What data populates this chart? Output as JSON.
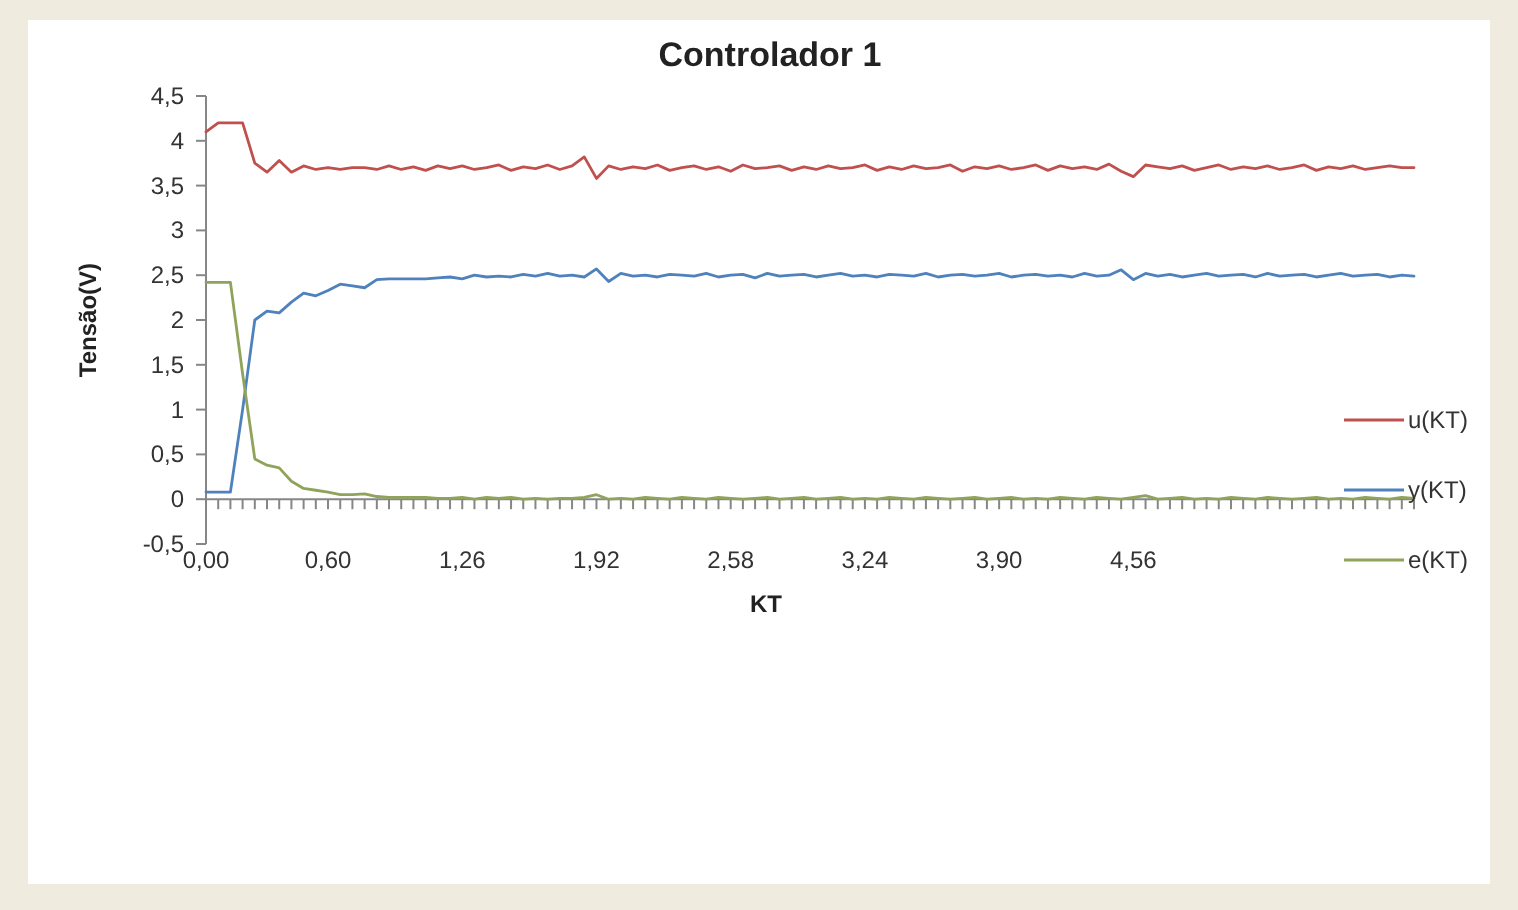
{
  "chart_data": {
    "type": "line",
    "title": "Controlador 1",
    "xlabel": "KT",
    "ylabel": "Tensão(V)",
    "categories": [
      "0,00",
      null,
      null,
      null,
      null,
      null,
      null,
      null,
      null,
      null,
      "0,60",
      null,
      null,
      null,
      null,
      null,
      null,
      null,
      null,
      null,
      null,
      "1,26",
      null,
      null,
      null,
      null,
      null,
      null,
      null,
      null,
      null,
      null,
      "1,92",
      null,
      null,
      null,
      null,
      null,
      null,
      null,
      null,
      null,
      null,
      "2,58",
      null,
      null,
      null,
      null,
      null,
      null,
      null,
      null,
      null,
      null,
      "3,24",
      null,
      null,
      null,
      null,
      null,
      null,
      null,
      null,
      null,
      null,
      "3,90",
      null,
      null,
      null,
      null,
      null,
      null,
      null,
      null,
      null,
      null,
      "4,56",
      null,
      null,
      null,
      null,
      null,
      null,
      null,
      null,
      null,
      null,
      null,
      null,
      null,
      null,
      null,
      null,
      null,
      null,
      null,
      null,
      null,
      null,
      null
    ],
    "ylim": [
      -0.5,
      4.5
    ],
    "yticks": [
      {
        "value": -0.5,
        "label": "-0,5"
      },
      0,
      {
        "value": 0.5,
        "label": "0,5"
      },
      1,
      {
        "value": 1.5,
        "label": "1,5"
      },
      2,
      {
        "value": 2.5,
        "label": "2,5"
      },
      3,
      {
        "value": 3.5,
        "label": "3,5"
      },
      4,
      {
        "value": 4.5,
        "label": "4,5"
      }
    ],
    "grid": false,
    "legend": "right",
    "marker": "none",
    "line_style": "solid",
    "series": [
      {
        "name": "u(KT)",
        "color": "#c0504d",
        "values": [
          4.1,
          4.2,
          4.2,
          4.2,
          3.75,
          3.65,
          3.78,
          3.65,
          3.72,
          3.68,
          3.7,
          3.68,
          3.7,
          3.7,
          3.68,
          3.72,
          3.68,
          3.71,
          3.67,
          3.72,
          3.69,
          3.72,
          3.68,
          3.7,
          3.73,
          3.67,
          3.71,
          3.69,
          3.73,
          3.68,
          3.72,
          3.82,
          3.58,
          3.72,
          3.68,
          3.71,
          3.69,
          3.73,
          3.67,
          3.7,
          3.72,
          3.68,
          3.71,
          3.66,
          3.73,
          3.69,
          3.7,
          3.72,
          3.67,
          3.71,
          3.68,
          3.72,
          3.69,
          3.7,
          3.73,
          3.67,
          3.71,
          3.68,
          3.72,
          3.69,
          3.7,
          3.73,
          3.66,
          3.71,
          3.69,
          3.72,
          3.68,
          3.7,
          3.73,
          3.67,
          3.72,
          3.69,
          3.71,
          3.68,
          3.74,
          3.66,
          3.6,
          3.73,
          3.71,
          3.69,
          3.72,
          3.67,
          3.7,
          3.73,
          3.68,
          3.71,
          3.69,
          3.72,
          3.68,
          3.7,
          3.73,
          3.67,
          3.71,
          3.69,
          3.72,
          3.68,
          3.7,
          3.72,
          3.7,
          3.7
        ]
      },
      {
        "name": "y(KT)",
        "color": "#4f81bd",
        "values": [
          0.08,
          0.08,
          0.08,
          1.0,
          2.0,
          2.1,
          2.08,
          2.2,
          2.3,
          2.27,
          2.33,
          2.4,
          2.38,
          2.36,
          2.45,
          2.46,
          2.46,
          2.46,
          2.46,
          2.47,
          2.48,
          2.46,
          2.5,
          2.48,
          2.49,
          2.48,
          2.51,
          2.49,
          2.52,
          2.49,
          2.5,
          2.48,
          2.57,
          2.43,
          2.52,
          2.49,
          2.5,
          2.48,
          2.51,
          2.5,
          2.49,
          2.52,
          2.48,
          2.5,
          2.51,
          2.47,
          2.52,
          2.49,
          2.5,
          2.51,
          2.48,
          2.5,
          2.52,
          2.49,
          2.5,
          2.48,
          2.51,
          2.5,
          2.49,
          2.52,
          2.48,
          2.5,
          2.51,
          2.49,
          2.5,
          2.52,
          2.48,
          2.5,
          2.51,
          2.49,
          2.5,
          2.48,
          2.52,
          2.49,
          2.5,
          2.56,
          2.45,
          2.52,
          2.49,
          2.51,
          2.48,
          2.5,
          2.52,
          2.49,
          2.5,
          2.51,
          2.48,
          2.52,
          2.49,
          2.5,
          2.51,
          2.48,
          2.5,
          2.52,
          2.49,
          2.5,
          2.51,
          2.48,
          2.5,
          2.49
        ]
      },
      {
        "name": "e(KT)",
        "color": "#8fa35a",
        "values": [
          2.42,
          2.42,
          2.42,
          1.4,
          0.45,
          0.38,
          0.35,
          0.2,
          0.12,
          0.1,
          0.08,
          0.05,
          0.05,
          0.06,
          0.03,
          0.02,
          0.02,
          0.02,
          0.02,
          0.01,
          0.01,
          0.02,
          0,
          0.02,
          0.01,
          0.02,
          0,
          0.01,
          0,
          0.01,
          0.01,
          0.02,
          0.05,
          0,
          0.01,
          0,
          0.02,
          0.01,
          0,
          0.02,
          0.01,
          0,
          0.02,
          0.01,
          0,
          0.01,
          0.02,
          0,
          0.01,
          0.02,
          0,
          0.01,
          0.02,
          0,
          0.01,
          0,
          0.02,
          0.01,
          0,
          0.02,
          0.01,
          0,
          0.01,
          0.02,
          0,
          0.01,
          0.02,
          0,
          0.01,
          0,
          0.02,
          0.01,
          0,
          0.02,
          0.01,
          0,
          0.02,
          0.04,
          0,
          0.01,
          0.02,
          0,
          0.01,
          0,
          0.02,
          0.01,
          0,
          0.02,
          0.01,
          0,
          0.01,
          0.02,
          0,
          0.01,
          0,
          0.02,
          0.01,
          0,
          0.02,
          0.01
        ]
      }
    ]
  }
}
